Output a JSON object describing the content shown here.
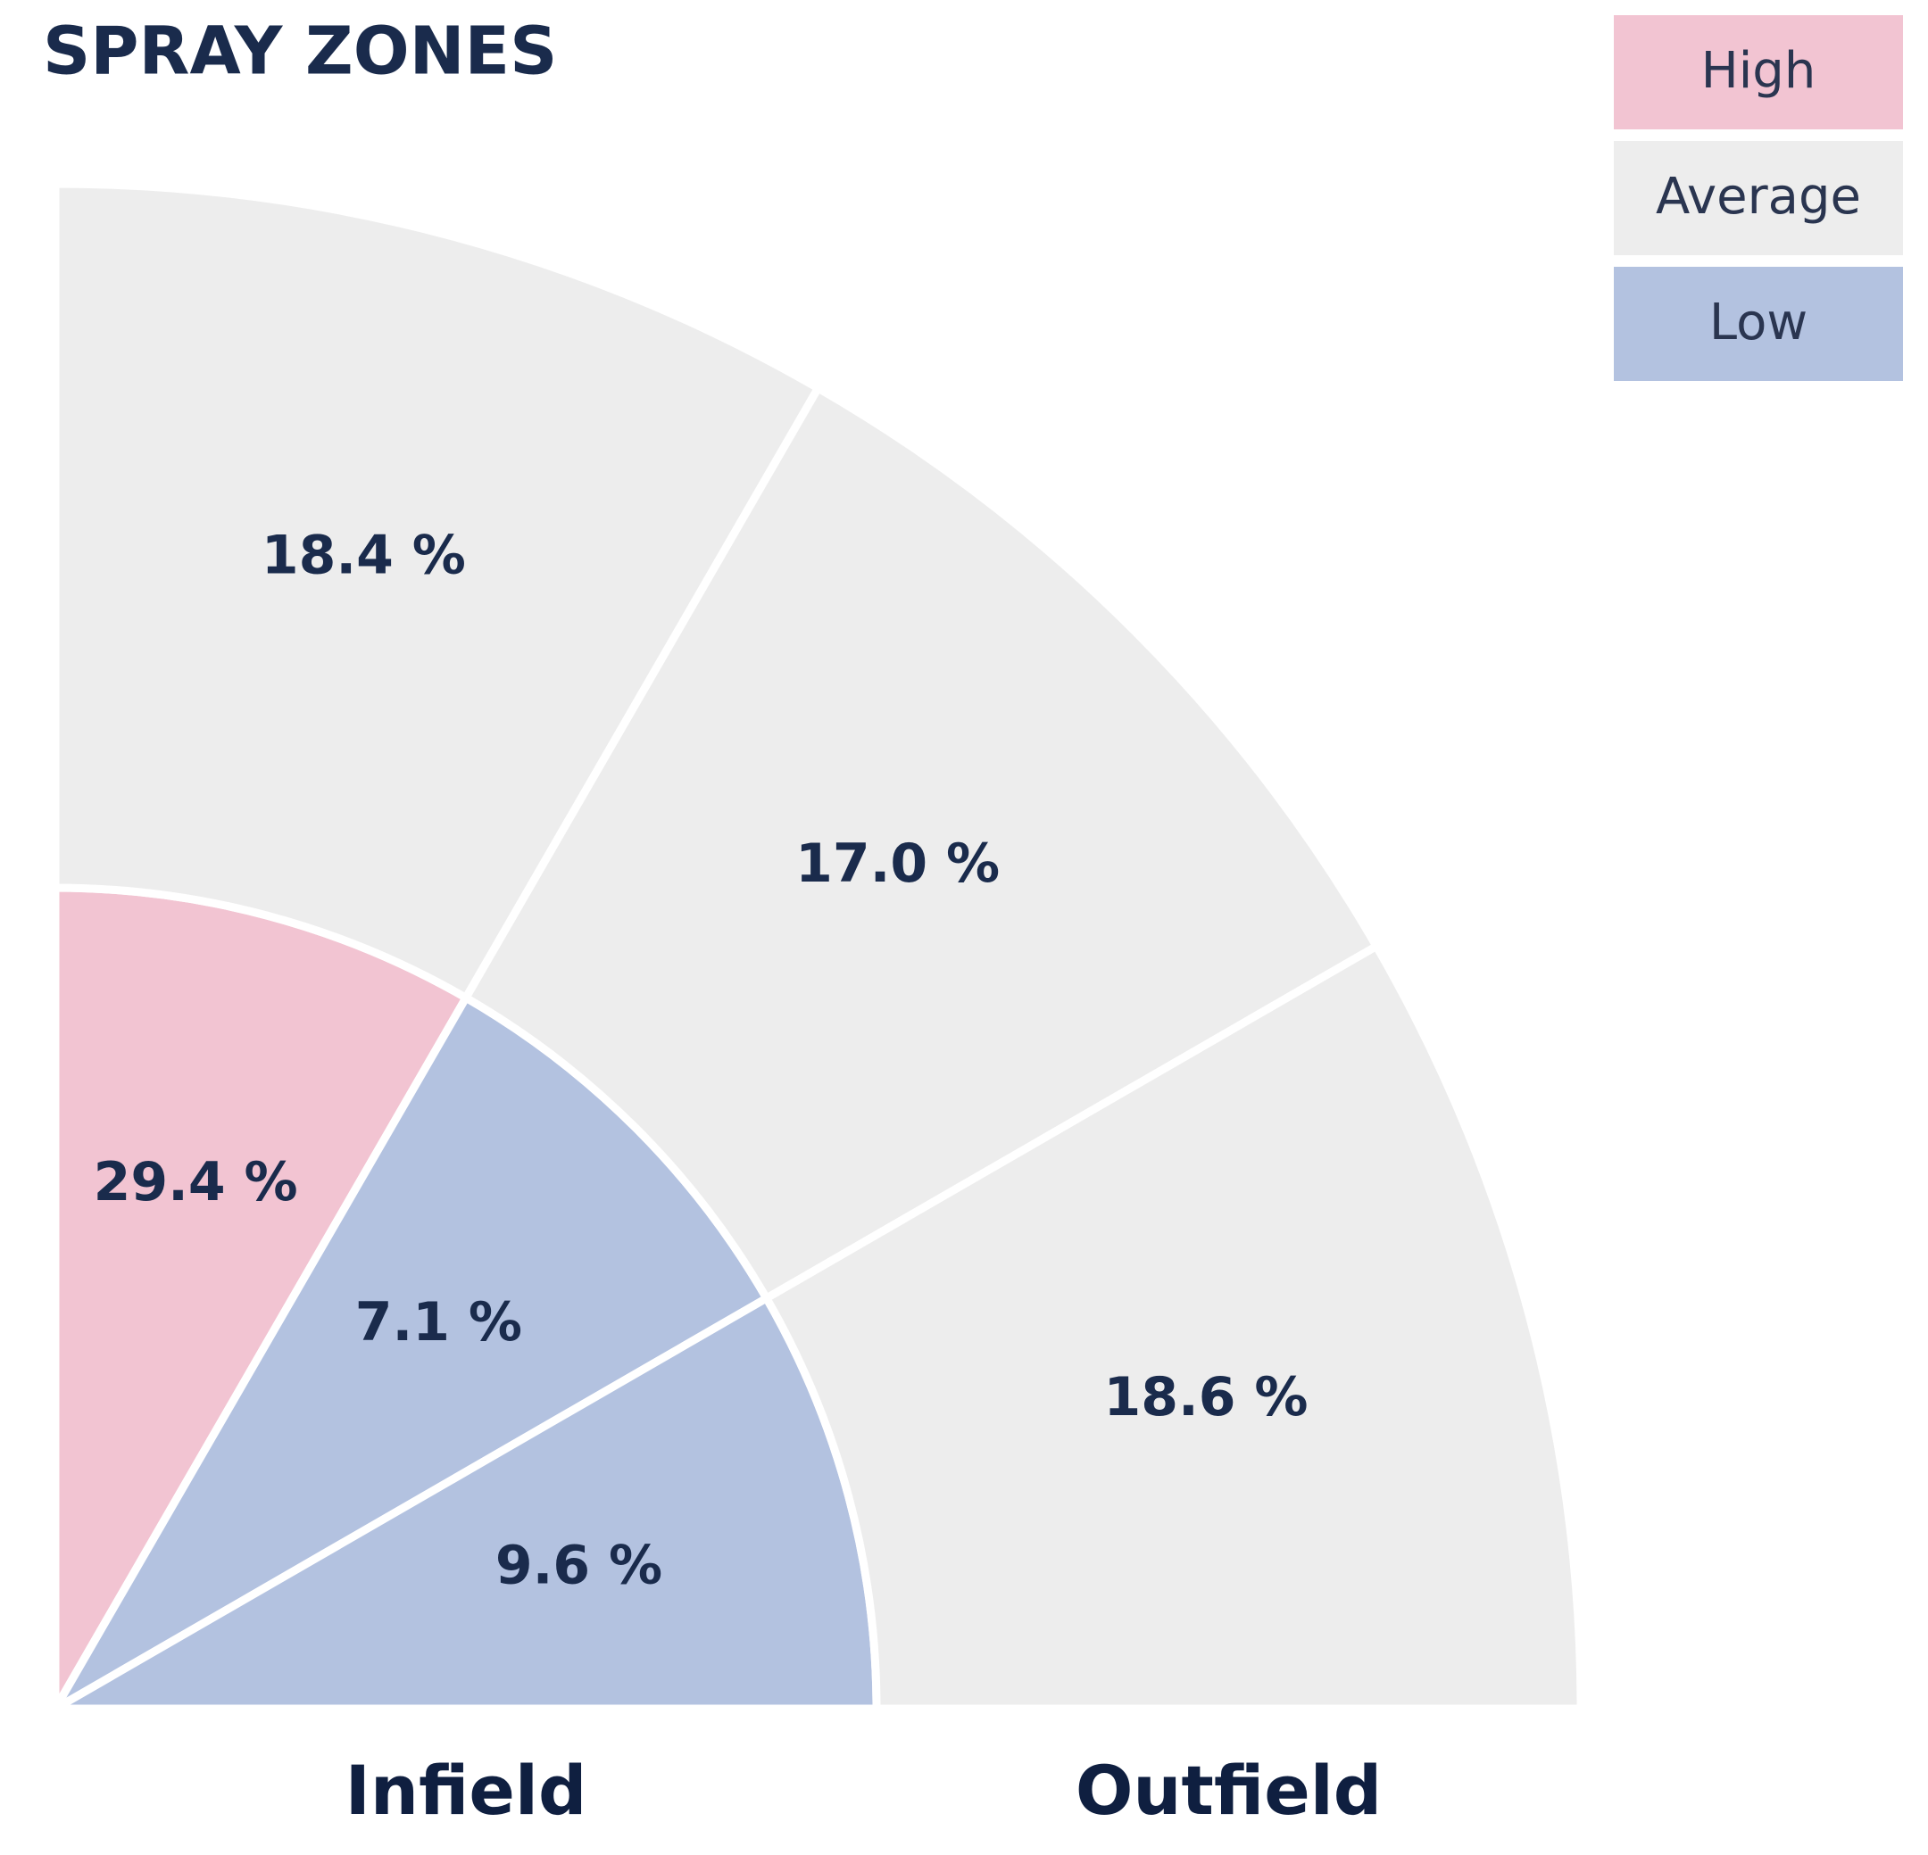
{
  "chart_data": {
    "type": "spray",
    "title": "SPRAY ZONES",
    "legend": [
      {
        "name": "High",
        "color": "#f2c4d2"
      },
      {
        "name": "Average",
        "color": "#ededed"
      },
      {
        "name": "Low",
        "color": "#b3c2e0"
      }
    ],
    "series": [
      {
        "name": "Infield",
        "values": [
          29.4,
          7.1,
          9.6
        ],
        "value_labels": [
          "29.4 %",
          "7.1 %",
          "9.6 %"
        ],
        "colors": [
          "#f2c4d2",
          "#b3c2e0",
          "#b3c2e0"
        ]
      },
      {
        "name": "Outfield",
        "values": [
          18.4,
          17.0,
          18.6
        ],
        "value_labels": [
          "18.4 %",
          "17.0 %",
          "18.6 %"
        ],
        "colors": [
          "#ededed",
          "#ededed",
          "#ededed"
        ]
      }
    ]
  }
}
